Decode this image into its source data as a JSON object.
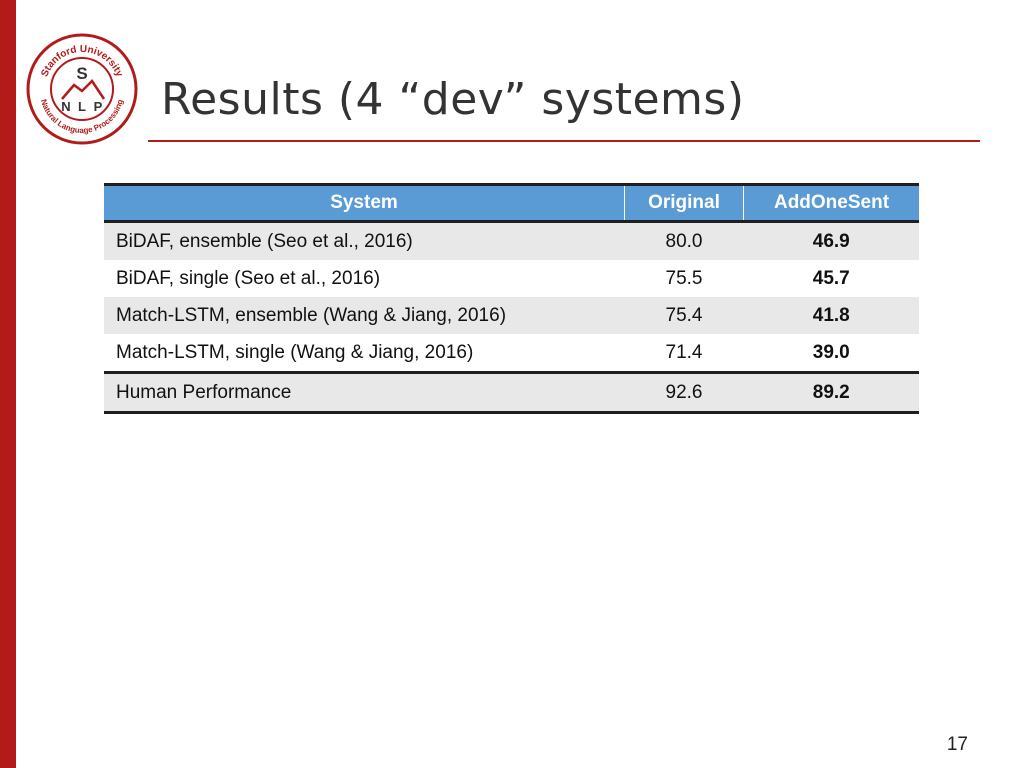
{
  "slide": {
    "title": "Results (4 “dev” systems)",
    "page_number": "17"
  },
  "logo": {
    "name": "stanford-nlp-logo",
    "top_text": "Stanford University",
    "bottom_text": "Natural Language Processing",
    "letter_s": "S",
    "letters_nlp": [
      "N",
      "L",
      "P"
    ],
    "ring_color": "#b31b1b"
  },
  "table": {
    "headers": [
      "System",
      "Original",
      "AddOneSent"
    ],
    "rows": [
      {
        "system": "BiDAF, ensemble (Seo et al., 2016)",
        "original": "80.0",
        "addonesent": "46.9"
      },
      {
        "system": "BiDAF, single (Seo et al., 2016)",
        "original": "75.5",
        "addonesent": "45.7"
      },
      {
        "system": "Match-LSTM, ensemble (Wang & Jiang, 2016)",
        "original": "75.4",
        "addonesent": "41.8"
      },
      {
        "system": "Match-LSTM, single (Wang & Jiang, 2016)",
        "original": "71.4",
        "addonesent": "39.0"
      },
      {
        "system": "Human Performance",
        "original": "92.6",
        "addonesent": "89.2"
      }
    ]
  },
  "colors": {
    "accent": "#b31b1b",
    "header_blue": "#5b9bd5",
    "row_shade": "#e8e8e8"
  }
}
